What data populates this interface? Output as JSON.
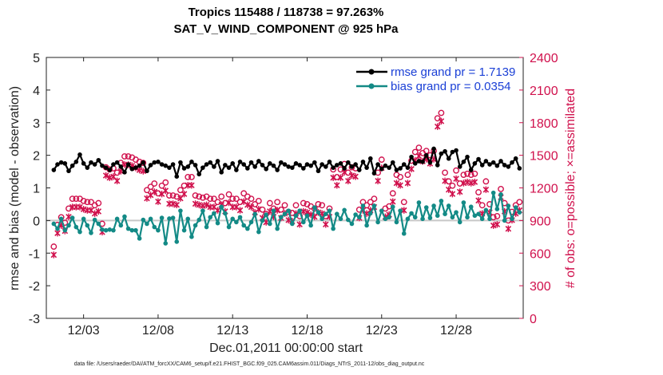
{
  "chart_data": {
    "type": "line",
    "title": "Tropics 115488 / 118738 = 97.263%",
    "subtitle": "SAT_V_WIND_COMPONENT @ 925 hPa",
    "xlabel": "Dec.01,2011 00:00:00 start",
    "ylabel": "rmse and bias (model - observation)",
    "ylabel_right": "# of obs: o=possible; ×=assimilated",
    "footer": "data file: /Users/raeder/DAI/ATM_forcXX/CAM6_setup/f.e21.FHIST_BGC.f09_025.CAM6assim.011/Diags_NTrS_2011-12/obs_diag_output.nc",
    "xlim": [
      0.5,
      32.5
    ],
    "ylim": [
      -3,
      5
    ],
    "ylim_right": [
      0,
      2400
    ],
    "x_ticks": [
      3,
      8,
      13,
      18,
      23,
      28
    ],
    "x_tick_labels": [
      "12/03",
      "12/08",
      "12/13",
      "12/18",
      "12/23",
      "12/28"
    ],
    "y_ticks": [
      -3,
      -2,
      -1,
      0,
      1,
      2,
      3,
      4,
      5
    ],
    "y_tick_labels": [
      "-3",
      "-2",
      "-1",
      "0",
      "1",
      "2",
      "3",
      "4",
      "5"
    ],
    "y_right_ticks": [
      0,
      300,
      600,
      900,
      1200,
      1500,
      1800,
      2100,
      2400
    ],
    "y_right_tick_labels": [
      "0",
      "300",
      "600",
      "900",
      "1200",
      "1500",
      "1800",
      "2100",
      "2400"
    ],
    "x": [
      1.0,
      1.25,
      1.5,
      1.75,
      2.0,
      2.25,
      2.5,
      2.75,
      3.0,
      3.25,
      3.5,
      3.75,
      4.0,
      4.25,
      4.5,
      4.75,
      5.0,
      5.25,
      5.5,
      5.75,
      6.0,
      6.25,
      6.5,
      6.75,
      7.0,
      7.25,
      7.5,
      7.75,
      8.0,
      8.25,
      8.5,
      8.75,
      9.0,
      9.25,
      9.5,
      9.75,
      10.0,
      10.25,
      10.5,
      10.75,
      11.0,
      11.25,
      11.5,
      11.75,
      12.0,
      12.25,
      12.5,
      12.75,
      13.0,
      13.25,
      13.5,
      13.75,
      14.0,
      14.25,
      14.5,
      14.75,
      15.0,
      15.25,
      15.5,
      15.75,
      16.0,
      16.25,
      16.5,
      16.75,
      17.0,
      17.25,
      17.5,
      17.75,
      18.0,
      18.25,
      18.5,
      18.75,
      19.0,
      19.25,
      19.5,
      19.75,
      20.0,
      20.25,
      20.5,
      20.75,
      21.0,
      21.25,
      21.5,
      21.75,
      22.0,
      22.25,
      22.5,
      22.75,
      23.0,
      23.25,
      23.5,
      23.75,
      24.0,
      24.25,
      24.5,
      24.75,
      25.0,
      25.25,
      25.5,
      25.75,
      26.0,
      26.25,
      26.5,
      26.75,
      27.0,
      27.25,
      27.5,
      27.75,
      28.0,
      28.25,
      28.5,
      28.75,
      29.0,
      29.25,
      29.5,
      29.75,
      30.0,
      30.25,
      30.5,
      30.75,
      31.0,
      31.25,
      31.5,
      31.75,
      32.0,
      32.25
    ],
    "series": [
      {
        "name": "rmse",
        "legend": "rmse grand pr = 1.7139",
        "color": "#000000",
        "values": [
          1.55,
          1.72,
          1.78,
          1.75,
          1.52,
          1.68,
          1.8,
          2.02,
          1.75,
          1.62,
          1.78,
          1.72,
          1.85,
          1.68,
          1.62,
          1.55,
          1.72,
          1.78,
          1.65,
          1.48,
          1.72,
          1.58,
          1.62,
          1.68,
          1.78,
          1.52,
          1.7,
          1.78,
          1.8,
          1.72,
          1.68,
          1.62,
          1.72,
          1.35,
          1.78,
          1.6,
          1.65,
          1.8,
          1.7,
          1.42,
          1.62,
          1.72,
          1.78,
          1.65,
          1.82,
          1.48,
          1.7,
          1.62,
          1.75,
          1.55,
          1.8,
          1.72,
          1.6,
          1.78,
          1.65,
          1.82,
          1.7,
          1.58,
          1.75,
          1.68,
          1.55,
          1.78,
          1.72,
          1.65,
          1.62,
          1.75,
          1.7,
          1.6,
          1.72,
          1.68,
          1.78,
          1.52,
          1.72,
          1.65,
          1.8,
          1.62,
          1.7,
          1.75,
          1.6,
          1.78,
          1.65,
          1.72,
          1.55,
          1.8,
          1.62,
          1.9,
          1.45,
          1.72,
          1.58,
          1.68,
          1.62,
          1.78,
          1.55,
          1.6,
          1.72,
          1.62,
          1.95,
          1.75,
          1.82,
          1.8,
          2.0,
          1.78,
          2.2,
          1.7,
          2.05,
          2.12,
          1.9,
          2.1,
          2.15,
          1.65,
          1.8,
          1.95,
          1.55,
          1.75,
          1.88,
          1.7,
          1.82,
          1.72,
          1.78,
          1.68,
          1.82,
          1.7,
          1.65,
          1.78,
          1.9,
          1.6
        ]
      },
      {
        "name": "bias",
        "legend": "bias grand pr = 0.0354",
        "color": "#138a86",
        "values": [
          -0.1,
          -0.25,
          0.05,
          -0.3,
          -0.15,
          0.08,
          -0.2,
          -0.35,
          0.05,
          -0.15,
          -0.38,
          0.02,
          -0.1,
          -0.28,
          -0.3,
          -0.28,
          -0.3,
          0.05,
          -0.15,
          0.12,
          -0.25,
          -0.3,
          -0.3,
          -0.55,
          0.02,
          -0.1,
          0.05,
          -0.2,
          -0.3,
          0.08,
          -0.7,
          0.06,
          0.08,
          -0.65,
          0.3,
          -0.3,
          0.05,
          -0.5,
          -0.15,
          0.02,
          0.3,
          -0.2,
          0.1,
          0.22,
          -0.08,
          0.42,
          0.22,
          -0.2,
          0.05,
          -0.05,
          0.1,
          -0.15,
          -0.25,
          -0.05,
          0.2,
          -0.35,
          0.0,
          0.18,
          -0.1,
          0.3,
          -0.25,
          0.1,
          0.2,
          0.3,
          -0.1,
          0.15,
          0.3,
          -0.05,
          0.15,
          -0.15,
          0.4,
          0.25,
          0.05,
          0.2,
          0.3,
          -0.25,
          0.2,
          0.05,
          0.32,
          0.02,
          -0.1,
          0.18,
          0.1,
          0.45,
          -0.15,
          0.22,
          0.45,
          -0.05,
          0.3,
          0.05,
          0.1,
          0.42,
          -0.05,
          0.3,
          -0.4,
          0.05,
          0.22,
          0.1,
          0.55,
          0.05,
          0.4,
          0.08,
          0.45,
          0.15,
          0.6,
          0.2,
          0.45,
          0.1,
          0.25,
          -0.05,
          0.55,
          0.1,
          0.42,
          0.15,
          0.2,
          0.05,
          0.32,
          0.05,
          0.85,
          0.35,
          0.8,
          0.0,
          0.45,
          0.05,
          0.4,
          0.25
        ]
      },
      {
        "name": "obs_possible",
        "marker": "o",
        "color": "#d0104c",
        "values": [
          660,
          860,
          930,
          880,
          1010,
          1100,
          1100,
          1100,
          1080,
          1070,
          1070,
          1040,
          1060,
          870,
          1390,
          1370,
          1380,
          1340,
          1430,
          1490,
          1490,
          1480,
          1460,
          1440,
          1430,
          1180,
          1210,
          1240,
          1150,
          1220,
          1250,
          1130,
          1130,
          1120,
          1180,
          1220,
          1300,
          1300,
          1130,
          1120,
          1110,
          1120,
          1100,
          1100,
          1070,
          1120,
          1060,
          1140,
          1100,
          1100,
          1070,
          1150,
          1120,
          1100,
          1050,
          1080,
          1000,
          960,
          1060,
          1010,
          1070,
          1000,
          1040,
          980,
          970,
          1040,
          940,
          1060,
          1050,
          1030,
          1010,
          1050,
          1040,
          940,
          1010,
          1370,
          1300,
          1370,
          1420,
          1340,
          1390,
          1380,
          1000,
          1070,
          1040,
          1070,
          1100,
          1340,
          1460,
          1010,
          1030,
          1150,
          1320,
          1300,
          1070,
          1320,
          1450,
          1530,
          1570,
          1520,
          1540,
          1500,
          1540,
          1840,
          1890,
          1340,
          1260,
          1220,
          1360,
          1240,
          1320,
          1330,
          1320,
          1330,
          1160,
          1040,
          1260,
          1050,
          930,
          940,
          1190,
          1060,
          900,
          980,
          1040,
          1070
        ]
      },
      {
        "name": "obs_assimilated",
        "marker": "x",
        "color": "#d0104c",
        "values": [
          650,
          850,
          920,
          870,
          1000,
          1090,
          1090,
          1090,
          1070,
          1060,
          1060,
          1030,
          1050,
          860,
          1380,
          1360,
          1370,
          1330,
          1420,
          1480,
          1480,
          1470,
          1450,
          1430,
          1420,
          1170,
          1200,
          1230,
          1140,
          1210,
          1240,
          1120,
          1120,
          1110,
          1170,
          1210,
          1290,
          1290,
          1120,
          1110,
          1100,
          1110,
          1090,
          1090,
          1060,
          1110,
          1050,
          1130,
          1090,
          1090,
          1060,
          1140,
          1110,
          1090,
          1040,
          1070,
          990,
          950,
          1050,
          1000,
          1060,
          990,
          1030,
          970,
          960,
          1030,
          930,
          1050,
          1040,
          1020,
          1000,
          1040,
          1030,
          930,
          1000,
          1360,
          1290,
          1360,
          1410,
          1330,
          1380,
          1370,
          990,
          1060,
          1030,
          1060,
          1090,
          1330,
          1450,
          1000,
          1020,
          1140,
          1310,
          1290,
          1060,
          1310,
          1440,
          1520,
          1560,
          1510,
          1530,
          1490,
          1530,
          1830,
          1880,
          1330,
          1250,
          1210,
          1350,
          1230,
          1310,
          1320,
          1310,
          1320,
          1150,
          1030,
          1250,
          1040,
          920,
          930,
          1180,
          1050,
          890,
          970,
          1030,
          1060
        ]
      }
    ]
  }
}
